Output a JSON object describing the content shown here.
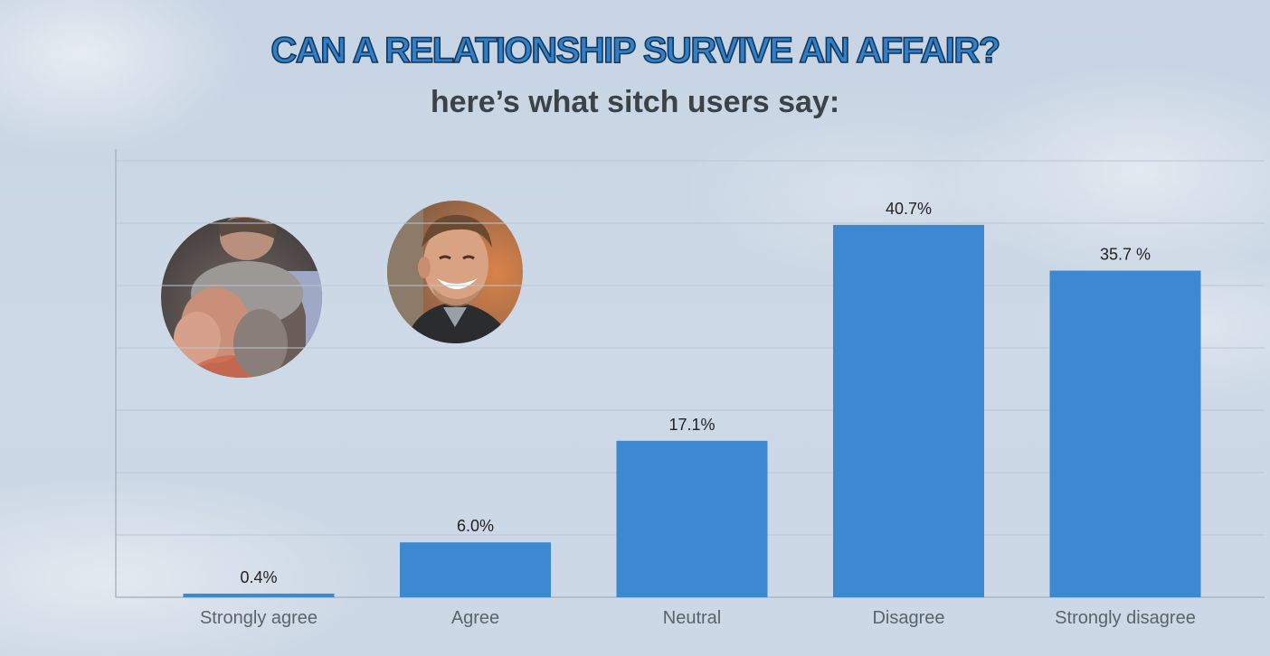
{
  "page": {
    "title": "CAN A RELATIONSHIP SURVIVE AN AFFAIR?",
    "subtitle": "here’s what sitch users say:"
  },
  "colors": {
    "bar": "#3c89d2",
    "title_fill": "#2f80c9",
    "title_outline": "#12365c",
    "text": "#3c4348",
    "axis": "#a9b5c1",
    "grid": "#b9c6d3"
  },
  "photos": [
    {
      "name": "photo-person-covering-face",
      "icon": "person-covering-face-photo"
    },
    {
      "name": "photo-smiling-man",
      "icon": "smiling-man-photo"
    }
  ],
  "chart_data": {
    "type": "bar",
    "categories": [
      "Strongly agree",
      "Agree",
      "Neutral",
      "Disagree",
      "Strongly disagree"
    ],
    "values": [
      0.4,
      6.0,
      17.1,
      40.7,
      35.7
    ],
    "data_labels": [
      "0.4%",
      "6.0%",
      "17.1%",
      "40.7%",
      "35.7 %"
    ],
    "ylim": [
      0,
      47.7
    ],
    "grid": true,
    "gridline_count": 7,
    "xlabel": "",
    "ylabel": ""
  }
}
